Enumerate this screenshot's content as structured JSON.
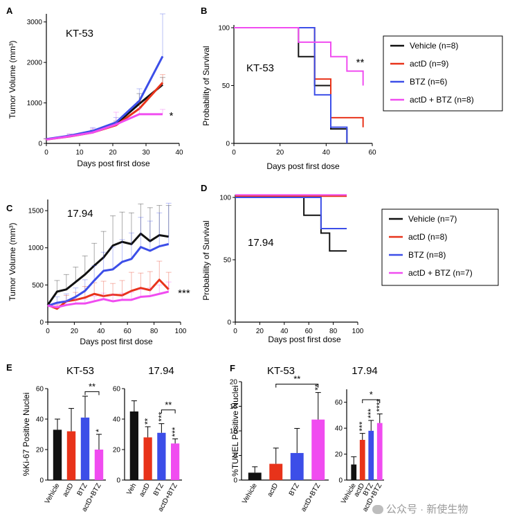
{
  "colors": {
    "black": "#111111",
    "red": "#e8331a",
    "blue": "#3c4ee8",
    "magenta": "#f04cf0"
  },
  "watermark": "公众号 · 新使生物",
  "chart_data": [
    {
      "id": "A",
      "panel_label": "A",
      "type": "line",
      "annotation": "KT-53",
      "xlabel": "Days post first dose",
      "ylabel": "Tumor Volume (mm³)",
      "xlim": [
        0,
        40
      ],
      "ylim": [
        0,
        3200
      ],
      "xticks": [
        0,
        10,
        20,
        30,
        40
      ],
      "yticks": [
        0,
        1000,
        2000,
        3000
      ],
      "significance": [
        {
          "text": "*",
          "x": 37,
          "y": 700
        }
      ],
      "series": [
        {
          "name": "Vehicle",
          "color": "#111111",
          "x": [
            0,
            7,
            14,
            21,
            28,
            35
          ],
          "y": [
            100,
            180,
            290,
            480,
            980,
            1450
          ],
          "err": [
            15,
            25,
            40,
            70,
            250,
            180
          ]
        },
        {
          "name": "actD",
          "color": "#e8331a",
          "x": [
            0,
            7,
            14,
            21,
            28,
            35
          ],
          "y": [
            95,
            170,
            270,
            450,
            860,
            1500
          ],
          "err": [
            15,
            25,
            40,
            60,
            180,
            200
          ]
        },
        {
          "name": "BTZ",
          "color": "#3c4ee8",
          "x": [
            0,
            7,
            14,
            21,
            28,
            35
          ],
          "y": [
            105,
            190,
            310,
            520,
            1050,
            2150
          ],
          "err": [
            15,
            40,
            80,
            120,
            300,
            1100
          ]
        },
        {
          "name": "actD + BTZ",
          "color": "#f04cf0",
          "x": [
            0,
            7,
            14,
            21,
            28,
            35
          ],
          "y": [
            95,
            175,
            270,
            470,
            720,
            720
          ],
          "err": [
            15,
            60,
            100,
            300,
            150,
            120
          ]
        }
      ]
    },
    {
      "id": "B",
      "panel_label": "B",
      "type": "step",
      "annotation": "KT-53",
      "xlabel": "Days post first dose",
      "ylabel": "Probability of Survival",
      "xlim": [
        0,
        60
      ],
      "ylim": [
        0,
        100
      ],
      "xticks": [
        0,
        20,
        40,
        60
      ],
      "yticks": [
        0,
        50,
        100
      ],
      "significance": [
        {
          "text": "**",
          "x": 53,
          "y": 70
        }
      ],
      "series": [
        {
          "name": "Vehicle",
          "label": "Vehicle (n=8)",
          "color": "#111111",
          "x": [
            0,
            28,
            35,
            42,
            49,
            49
          ],
          "y": [
            100,
            75,
            50,
            12.5,
            0,
            0
          ]
        },
        {
          "name": "actD",
          "label": "actD (n=9)",
          "color": "#e8331a",
          "x": [
            0,
            35,
            42,
            56
          ],
          "y": [
            100,
            55.6,
            22.2,
            13.9
          ]
        },
        {
          "name": "BTZ",
          "label": "BTZ (n=6)",
          "color": "#3c4ee8",
          "x": [
            0,
            35,
            42,
            49
          ],
          "y": [
            100,
            42,
            14,
            0
          ]
        },
        {
          "name": "actD + BTZ",
          "label": "actD + BTZ (n=8)",
          "color": "#f04cf0",
          "x": [
            0,
            28,
            42,
            49,
            56
          ],
          "y": [
            100,
            87.5,
            75,
            62.5,
            50
          ]
        }
      ],
      "legend": [
        "Vehicle (n=8)",
        "actD (n=9)",
        "BTZ (n=6)",
        "actD + BTZ (n=8)"
      ]
    },
    {
      "id": "C",
      "panel_label": "C",
      "type": "line",
      "annotation": "17.94",
      "xlabel": "Days post first dose",
      "ylabel": "Tumor Volume (mm³)",
      "xlim": [
        0,
        100
      ],
      "ylim": [
        0,
        1650
      ],
      "xticks": [
        0,
        20,
        40,
        60,
        80,
        100
      ],
      "yticks": [
        0,
        500,
        1000,
        1500
      ],
      "significance": [
        {
          "text": "***",
          "x": 98,
          "y": 400
        }
      ],
      "series": [
        {
          "name": "Vehicle",
          "color": "#111111",
          "x": [
            0,
            7,
            14,
            21,
            28,
            35,
            42,
            49,
            56,
            63,
            70,
            77,
            84,
            91
          ],
          "y": [
            230,
            410,
            440,
            540,
            640,
            760,
            870,
            1030,
            1080,
            1050,
            1190,
            1090,
            1170,
            1150
          ],
          "err": [
            0,
            150,
            200,
            200,
            250,
            300,
            350,
            400,
            400,
            420,
            400,
            450,
            400,
            420
          ]
        },
        {
          "name": "actD",
          "color": "#e8331a",
          "x": [
            0,
            7,
            14,
            21,
            28,
            35,
            42,
            49,
            56,
            63,
            70,
            77,
            84,
            91
          ],
          "y": [
            230,
            180,
            280,
            300,
            330,
            380,
            350,
            370,
            360,
            420,
            460,
            430,
            570,
            440
          ],
          "err": [
            0,
            50,
            80,
            100,
            150,
            150,
            200,
            150,
            200,
            250,
            200,
            250,
            250,
            230
          ]
        },
        {
          "name": "BTZ",
          "color": "#3c4ee8",
          "x": [
            0,
            7,
            14,
            21,
            28,
            35,
            42,
            49,
            56,
            63,
            70,
            77,
            84,
            91
          ],
          "y": [
            220,
            260,
            280,
            340,
            420,
            560,
            690,
            710,
            810,
            850,
            1010,
            960,
            1020,
            1050
          ],
          "err": [
            0,
            80,
            100,
            120,
            150,
            200,
            250,
            300,
            300,
            350,
            400,
            400,
            450,
            550
          ]
        },
        {
          "name": "actD + BTZ",
          "color": "#f04cf0",
          "x": [
            0,
            7,
            14,
            21,
            28,
            35,
            42,
            49,
            56,
            63,
            70,
            77,
            84,
            91
          ],
          "y": [
            220,
            200,
            230,
            250,
            250,
            280,
            310,
            280,
            300,
            300,
            340,
            350,
            380,
            410
          ],
          "err": [
            0,
            40,
            50,
            60,
            60,
            70,
            80,
            90,
            90,
            100,
            100,
            110,
            120,
            130
          ]
        }
      ]
    },
    {
      "id": "D",
      "panel_label": "D",
      "type": "step",
      "annotation": "17.94",
      "xlabel": "Days post first dose",
      "ylabel": "Probability of Survival",
      "xlim": [
        0,
        100
      ],
      "ylim": [
        0,
        100
      ],
      "xticks": [
        0,
        20,
        40,
        60,
        80,
        100
      ],
      "yticks": [
        0,
        50,
        100
      ],
      "series": [
        {
          "name": "Vehicle",
          "label": "Vehicle (n=7)",
          "color": "#111111",
          "x": [
            0,
            56,
            70,
            77,
            91
          ],
          "y": [
            100,
            85.7,
            71.4,
            57.1,
            57.1
          ]
        },
        {
          "name": "actD",
          "label": "actD (n=8)",
          "color": "#e8331a",
          "x": [
            0,
            91
          ],
          "y": [
            101,
            101
          ]
        },
        {
          "name": "BTZ",
          "label": "BTZ (n=8)",
          "color": "#3c4ee8",
          "x": [
            0,
            70,
            91
          ],
          "y": [
            100,
            75,
            75
          ]
        },
        {
          "name": "actD + BTZ",
          "label": "actD + BTZ (n=7)",
          "color": "#f04cf0",
          "x": [
            0,
            91
          ],
          "y": [
            102,
            102
          ]
        }
      ],
      "legend": [
        "Vehicle (n=7)",
        "actD (n=8)",
        "BTZ (n=8)",
        "actD + BTZ (n=7)"
      ]
    },
    {
      "id": "E1",
      "panel_label": "E",
      "type": "bar",
      "title": "KT-53",
      "ylabel": "%Ki-67 Positive Nuclei",
      "ylim": [
        0,
        60
      ],
      "yticks": [
        0,
        20,
        40,
        60
      ],
      "categories": [
        "Vehicle",
        "actD",
        "BTZ",
        "actD+BTZ"
      ],
      "values": [
        33,
        32,
        41,
        20
      ],
      "err": [
        7,
        15,
        14,
        10
      ],
      "colors": [
        "#111111",
        "#e8331a",
        "#3c4ee8",
        "#f04cf0"
      ],
      "bar_marks": [
        "",
        "",
        "",
        "*"
      ],
      "bracket": {
        "from": 2,
        "to": 3,
        "y": 58,
        "text": "**"
      }
    },
    {
      "id": "E2",
      "type": "bar",
      "title": "17.94",
      "ylim": [
        0,
        60
      ],
      "yticks": [
        0,
        20,
        40,
        60
      ],
      "categories": [
        "Veh",
        "actD",
        "BTZ",
        "actD+BTZ"
      ],
      "values": [
        45,
        28,
        31,
        24
      ],
      "err": [
        7,
        7,
        6,
        3
      ],
      "colors": [
        "#111111",
        "#e8331a",
        "#3c4ee8",
        "#f04cf0"
      ],
      "bar_marks": [
        "",
        "**",
        "***",
        "***"
      ],
      "bracket": {
        "from": 2,
        "to": 3,
        "y": 46,
        "text": "**"
      }
    },
    {
      "id": "F1",
      "panel_label": "F",
      "type": "bar",
      "title": "KT-53",
      "ylabel": "%TUNEL Positive Nuclei",
      "ylim": [
        0,
        20
      ],
      "yticks": [
        0,
        5,
        10,
        15,
        20
      ],
      "categories": [
        "Vehicle",
        "actD",
        "BTZ",
        "actD+BTZ"
      ],
      "values": [
        1.5,
        3.3,
        5.5,
        12.3
      ],
      "err": [
        1.2,
        3.2,
        5.0,
        5.5
      ],
      "colors": [
        "#111111",
        "#e8331a",
        "#3c4ee8",
        "#f04cf0"
      ],
      "bar_marks": [
        "",
        "",
        "",
        "**"
      ],
      "bracket": {
        "from": 1,
        "to": 3,
        "y": 19.5,
        "text": "**"
      }
    },
    {
      "id": "F2",
      "type": "bar",
      "title": "17.94",
      "ylim": [
        0,
        70
      ],
      "yticks": [
        0,
        20,
        40,
        60
      ],
      "categories": [
        "Vehicle",
        "actD",
        "BTZ",
        "actD+BTZ"
      ],
      "values": [
        12,
        31,
        38,
        44
      ],
      "err": [
        6,
        5,
        8,
        7
      ],
      "colors": [
        "#111111",
        "#e8331a",
        "#3c4ee8",
        "#f04cf0"
      ],
      "bar_marks": [
        "",
        "***",
        "***",
        "****"
      ],
      "bracket": {
        "from": 1,
        "to": 3,
        "y": 62,
        "text": "*"
      }
    }
  ]
}
